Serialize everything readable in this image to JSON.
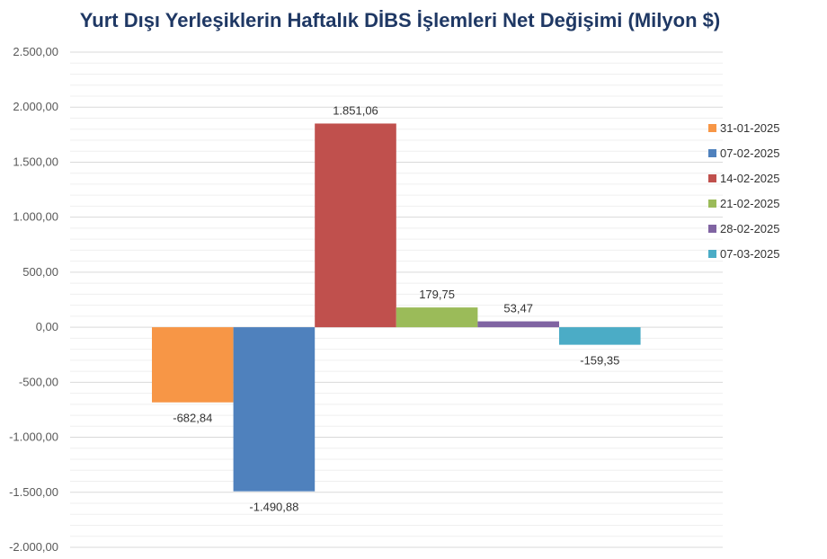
{
  "chart_data": {
    "type": "bar",
    "title": "Yurt Dışı Yerleşiklerin Haftalık DİBS İşlemleri Net Değişimi (Milyon $)",
    "ylim": [
      -2000,
      2500
    ],
    "y_ticks": [
      2500,
      2000,
      1500,
      1000,
      500,
      0,
      -500,
      -1000,
      -1500,
      -2000
    ],
    "y_tick_labels": [
      "2.500,00",
      "2.000,00",
      "1.500,00",
      "1.000,00",
      "500,00",
      "0,00",
      "-500,00",
      "-1.000,00",
      "-1.500,00",
      "-2.000,00"
    ],
    "grid": true,
    "legend_position": "right",
    "series": [
      {
        "name": "31-01-2025",
        "value": -682.84,
        "label": "-682,84",
        "color": "#F79646"
      },
      {
        "name": "07-02-2025",
        "value": -1490.88,
        "label": "-1.490,88",
        "color": "#4F81BD"
      },
      {
        "name": "14-02-2025",
        "value": 1851.06,
        "label": "1.851,06",
        "color": "#C0504D"
      },
      {
        "name": "21-02-2025",
        "value": 179.75,
        "label": "179,75",
        "color": "#9BBB59"
      },
      {
        "name": "28-02-2025",
        "value": 53.47,
        "label": "53,47",
        "color": "#8064A2"
      },
      {
        "name": "07-03-2025",
        "value": -159.35,
        "label": "-159,35",
        "color": "#4BACC6"
      }
    ]
  }
}
